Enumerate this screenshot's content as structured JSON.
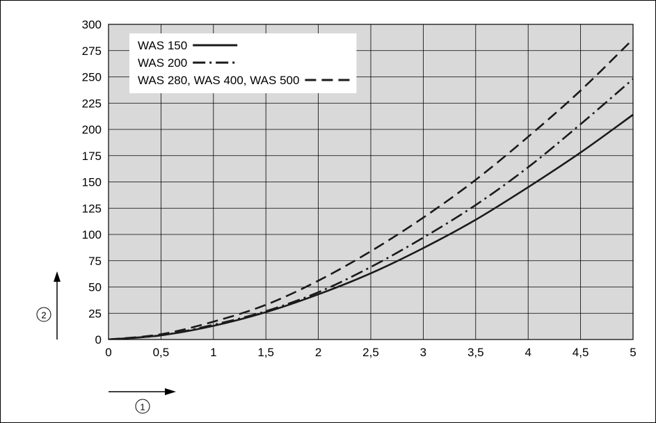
{
  "chart_data": {
    "type": "line",
    "title": "",
    "xlabel": "",
    "ylabel": "",
    "xlim": [
      0,
      5
    ],
    "ylim": [
      0,
      300
    ],
    "grid": true,
    "background": "#d9d9d9",
    "legend_position": "top-left",
    "x_ticks": [
      "0",
      "0,5",
      "1",
      "1,5",
      "2",
      "2,5",
      "3",
      "3,5",
      "4",
      "4,5",
      "5"
    ],
    "x_tick_values": [
      0,
      0.5,
      1,
      1.5,
      2,
      2.5,
      3,
      3.5,
      4,
      4.5,
      5
    ],
    "y_ticks": [
      "0",
      "25",
      "50",
      "75",
      "100",
      "125",
      "150",
      "175",
      "200",
      "225",
      "250",
      "275",
      "300"
    ],
    "y_tick_values": [
      0,
      25,
      50,
      75,
      100,
      125,
      150,
      175,
      200,
      225,
      250,
      275,
      300
    ],
    "x": [
      0,
      0.5,
      1,
      1.5,
      2,
      2.5,
      3,
      3.5,
      4,
      4.5,
      5
    ],
    "series": [
      {
        "name": "WAS 150",
        "style": "solid",
        "values": [
          0,
          4,
          13,
          26,
          43,
          63,
          87,
          114,
          145,
          178,
          214
        ]
      },
      {
        "name": "WAS 200",
        "style": "dash-dot",
        "values": [
          0,
          4,
          14,
          27,
          45,
          69,
          97,
          128,
          164,
          205,
          248
        ]
      },
      {
        "name": "WAS 280, WAS 400, WAS 500",
        "style": "dashed",
        "values": [
          0,
          5,
          17,
          33,
          56,
          84,
          116,
          152,
          193,
          237,
          286
        ]
      }
    ]
  },
  "markers": {
    "x_axis_marker": "①",
    "y_axis_marker": "②"
  },
  "colors": {
    "line": "#1a1a1a",
    "grid": "#000000",
    "plot_bg": "#d9d9d9"
  }
}
